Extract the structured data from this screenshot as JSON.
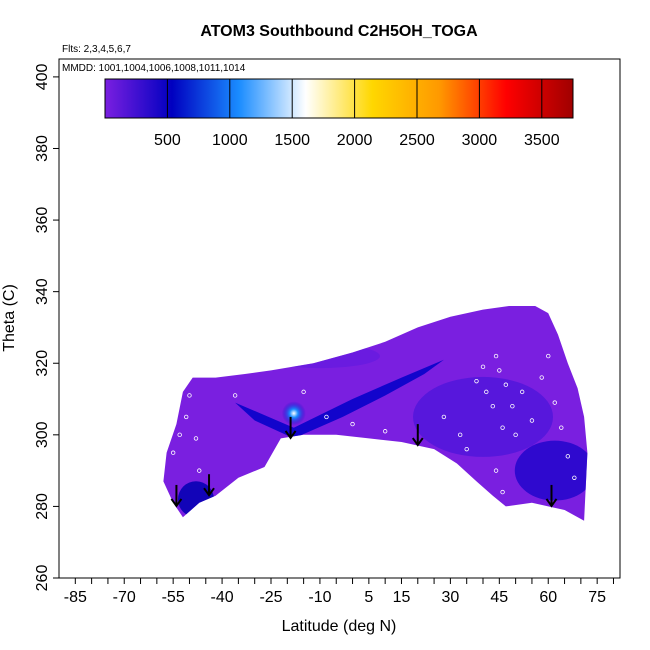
{
  "chart_data": {
    "type": "heatmap",
    "title": "ATOM3 Southbound C2H5OH_TOGA",
    "flights_label": "Flts: 2,3,4,5,6,7",
    "dates_label": "MMDD: 1001,1004,1006,1008,1011,1014",
    "xlabel": "Latitude (deg N)",
    "ylabel": "Theta (C)",
    "xlim": [
      -90,
      82
    ],
    "ylim": [
      260,
      405
    ],
    "x_ticks": [
      -85,
      -70,
      -55,
      -40,
      -25,
      -10,
      5,
      15,
      30,
      45,
      60,
      75
    ],
    "y_ticks": [
      260,
      280,
      300,
      320,
      340,
      360,
      380,
      400
    ],
    "colorbar": {
      "ticks": [
        "500",
        "1000",
        "1500",
        "2000",
        "2500",
        "3000",
        "3500"
      ],
      "min": 0,
      "max": 3750,
      "stops": [
        "#7a1fe0",
        "#0000c0",
        "#1a8cff",
        "#ffffff",
        "#ffd700",
        "#ff9900",
        "#ff0000",
        "#a00000"
      ]
    },
    "lower_boundary": [
      {
        "lat": -55,
        "theta": 281
      },
      {
        "lat": -52,
        "theta": 277
      },
      {
        "lat": -47,
        "theta": 281
      },
      {
        "lat": -42,
        "theta": 283
      },
      {
        "lat": -35,
        "theta": 288
      },
      {
        "lat": -27,
        "theta": 291
      },
      {
        "lat": -22,
        "theta": 299
      },
      {
        "lat": -15,
        "theta": 300
      },
      {
        "lat": -5,
        "theta": 300
      },
      {
        "lat": 5,
        "theta": 299
      },
      {
        "lat": 15,
        "theta": 298
      },
      {
        "lat": 25,
        "theta": 296
      },
      {
        "lat": 32,
        "theta": 292
      },
      {
        "lat": 38,
        "theta": 287
      },
      {
        "lat": 43,
        "theta": 283
      },
      {
        "lat": 47,
        "theta": 280
      },
      {
        "lat": 55,
        "theta": 281
      },
      {
        "lat": 65,
        "theta": 279
      },
      {
        "lat": 71,
        "theta": 276
      }
    ],
    "upper_boundary": [
      {
        "lat": 71,
        "theta": 276
      },
      {
        "lat": 72,
        "theta": 295
      },
      {
        "lat": 71,
        "theta": 305
      },
      {
        "lat": 69,
        "theta": 313
      },
      {
        "lat": 66,
        "theta": 320
      },
      {
        "lat": 63,
        "theta": 328
      },
      {
        "lat": 60,
        "theta": 334
      },
      {
        "lat": 56,
        "theta": 336
      },
      {
        "lat": 48,
        "theta": 336
      },
      {
        "lat": 40,
        "theta": 335
      },
      {
        "lat": 30,
        "theta": 333
      },
      {
        "lat": 20,
        "theta": 330
      },
      {
        "lat": 10,
        "theta": 326
      },
      {
        "lat": 0,
        "theta": 323
      },
      {
        "lat": -12,
        "theta": 320
      },
      {
        "lat": -25,
        "theta": 318
      },
      {
        "lat": -33,
        "theta": 317
      },
      {
        "lat": -42,
        "theta": 316
      },
      {
        "lat": -49,
        "theta": 316
      },
      {
        "lat": -52,
        "theta": 312
      },
      {
        "lat": -54,
        "theta": 303
      },
      {
        "lat": -57,
        "theta": 295
      },
      {
        "lat": -58,
        "theta": 287
      },
      {
        "lat": -55,
        "theta": 281
      }
    ],
    "plume": [
      {
        "lat": -36,
        "theta": 309
      },
      {
        "lat": -18,
        "theta": 302
      },
      {
        "lat": 0,
        "theta": 310
      },
      {
        "lat": 15,
        "theta": 316
      },
      {
        "lat": 28,
        "theta": 321
      },
      {
        "lat": 22,
        "theta": 317
      },
      {
        "lat": 10,
        "theta": 311
      },
      {
        "lat": -3,
        "theta": 305
      },
      {
        "lat": -18,
        "theta": 299
      },
      {
        "lat": -30,
        "theta": 304
      }
    ],
    "plume_peak": {
      "lat": -18,
      "theta": 306,
      "value": 1800
    },
    "arrows": [
      {
        "lat": -54,
        "theta": 286
      },
      {
        "lat": -44,
        "theta": 289
      },
      {
        "lat": -19,
        "theta": 305
      },
      {
        "lat": 20,
        "theta": 303
      },
      {
        "lat": 61,
        "theta": 286
      }
    ],
    "samples": [
      {
        "lat": -55,
        "theta": 295
      },
      {
        "lat": -53,
        "theta": 300
      },
      {
        "lat": -51,
        "theta": 305
      },
      {
        "lat": -50,
        "theta": 311
      },
      {
        "lat": -48,
        "theta": 299
      },
      {
        "lat": -47,
        "theta": 290
      },
      {
        "lat": -36,
        "theta": 311
      },
      {
        "lat": -15,
        "theta": 312
      },
      {
        "lat": -8,
        "theta": 305
      },
      {
        "lat": 0,
        "theta": 303
      },
      {
        "lat": 10,
        "theta": 301
      },
      {
        "lat": 28,
        "theta": 305
      },
      {
        "lat": 33,
        "theta": 300
      },
      {
        "lat": 35,
        "theta": 296
      },
      {
        "lat": 38,
        "theta": 315
      },
      {
        "lat": 40,
        "theta": 319
      },
      {
        "lat": 41,
        "theta": 312
      },
      {
        "lat": 43,
        "theta": 308
      },
      {
        "lat": 44,
        "theta": 322
      },
      {
        "lat": 45,
        "theta": 318
      },
      {
        "lat": 46,
        "theta": 302
      },
      {
        "lat": 47,
        "theta": 314
      },
      {
        "lat": 49,
        "theta": 308
      },
      {
        "lat": 50,
        "theta": 300
      },
      {
        "lat": 52,
        "theta": 312
      },
      {
        "lat": 55,
        "theta": 304
      },
      {
        "lat": 58,
        "theta": 316
      },
      {
        "lat": 60,
        "theta": 322
      },
      {
        "lat": 62,
        "theta": 309
      },
      {
        "lat": 64,
        "theta": 302
      },
      {
        "lat": 66,
        "theta": 294
      },
      {
        "lat": 68,
        "theta": 288
      },
      {
        "lat": 70,
        "theta": 312
      },
      {
        "lat": 55,
        "theta": 337
      },
      {
        "lat": 44,
        "theta": 290
      },
      {
        "lat": 46,
        "theta": 284
      }
    ]
  }
}
